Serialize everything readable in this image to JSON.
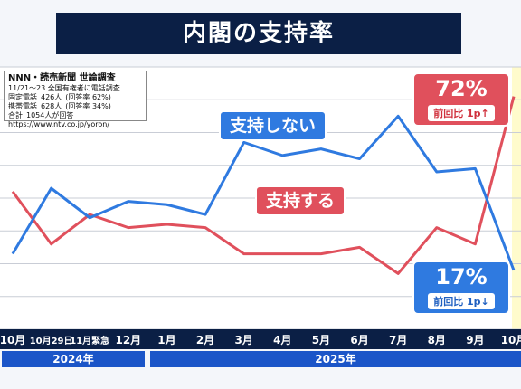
{
  "title": "内閣の支持率",
  "source": {
    "title": "NNN・読売新聞 世論調査",
    "line1": "11/21～23 全国有権者に電話調査",
    "fixed_label": "固定電話",
    "fixed_value": "426人",
    "fixed_rate": "(回答率 62%)",
    "mobile_label": "携帯電話",
    "mobile_value": "628人",
    "mobile_rate": "(回答率 34%)",
    "total_label": "合計",
    "total_value": "1054人が回答",
    "url": "https://www.ntv.co.jp/yoron/"
  },
  "callouts": {
    "support": {
      "value": "72%",
      "change": "前回比 1p↑"
    },
    "oppose": {
      "value": "17%",
      "change": "前回比 1p↓"
    }
  },
  "years": {
    "y2024": "2024年",
    "y2025": "2025年"
  },
  "colors": {
    "support": "#e0505c",
    "oppose": "#2f7ae0",
    "navy": "#0b1f45",
    "year_band": "#1b55c8"
  },
  "chart_data": {
    "type": "line",
    "categories": [
      "10月",
      "10月29日",
      "11月緊急",
      "12月",
      "1月",
      "2月",
      "3月",
      "4月",
      "5月",
      "6月",
      "7月",
      "8月",
      "9月",
      "10月"
    ],
    "series": [
      {
        "name": "支持する",
        "values": [
          42,
          26,
          35,
          31,
          32,
          31,
          23,
          23,
          23,
          25,
          17,
          31,
          26,
          71
        ]
      },
      {
        "name": "支持しない",
        "values": [
          23,
          43,
          34,
          39,
          38,
          35,
          57,
          53,
          55,
          52,
          65,
          48,
          49,
          18
        ]
      }
    ],
    "ylim": [
      0,
      80
    ],
    "grid": true
  }
}
